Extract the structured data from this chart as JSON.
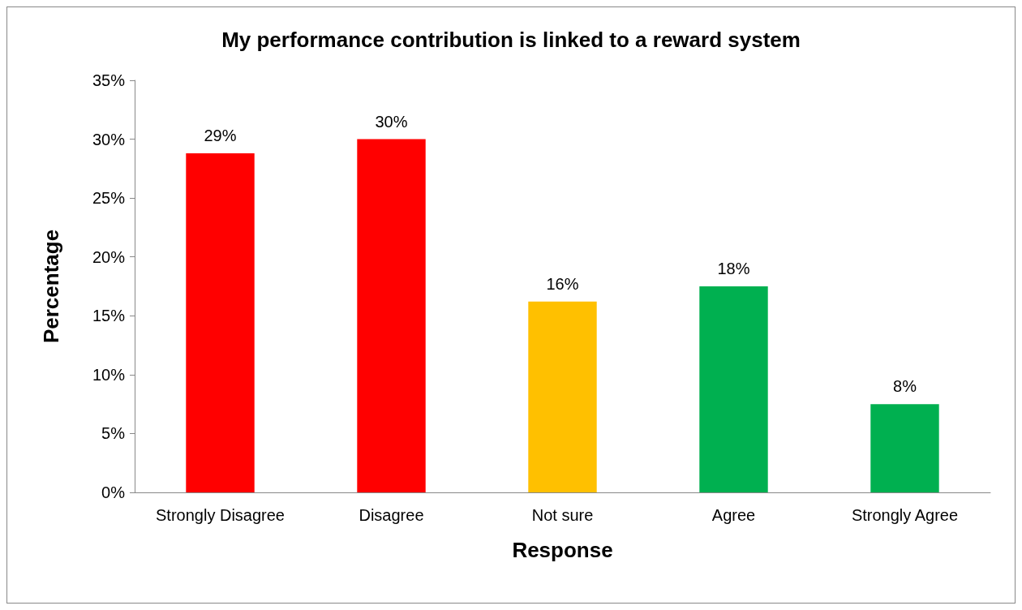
{
  "chart_data": {
    "type": "bar",
    "title": "My performance contribution is linked to a reward system",
    "xlabel": "Response",
    "ylabel": "Percentage",
    "categories": [
      "Strongly Disagree",
      "Disagree",
      "Not sure",
      "Agree",
      "Strongly Agree"
    ],
    "values": [
      28.8,
      30.0,
      16.2,
      17.5,
      7.5
    ],
    "colors": [
      "#ff0000",
      "#ff0000",
      "#ffc000",
      "#00b050",
      "#00b050"
    ],
    "value_labels": [
      "29%",
      "30%",
      "16%",
      "18%",
      "8%"
    ],
    "ylim": [
      0,
      35
    ],
    "yticks": [
      {
        "value": 0,
        "label": "0%"
      },
      {
        "value": 5,
        "label": "5%"
      },
      {
        "value": 10,
        "label": "10%"
      },
      {
        "value": 15,
        "label": "15%"
      },
      {
        "value": 20,
        "label": "20%"
      },
      {
        "value": 25,
        "label": "25%"
      },
      {
        "value": 30,
        "label": "30%"
      },
      {
        "value": 35,
        "label": "35%"
      }
    ],
    "grid": false
  }
}
